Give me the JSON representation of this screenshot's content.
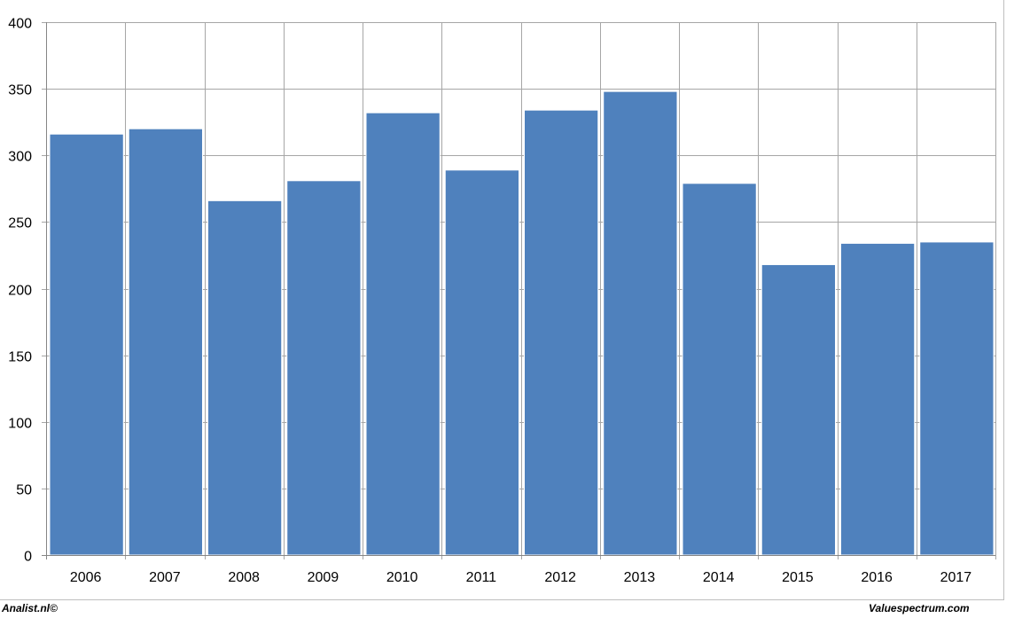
{
  "chart_data": {
    "type": "bar",
    "categories": [
      "2006",
      "2007",
      "2008",
      "2009",
      "2010",
      "2011",
      "2012",
      "2013",
      "2014",
      "2015",
      "2016",
      "2017"
    ],
    "values": [
      316,
      320,
      266,
      281,
      332,
      289,
      334,
      348,
      279,
      218,
      234,
      235
    ],
    "title": "",
    "xlabel": "",
    "ylabel": "",
    "ylim": [
      0,
      400
    ],
    "yticks": [
      "0",
      "50",
      "100",
      "150",
      "200",
      "250",
      "300",
      "350",
      "400"
    ],
    "grid": true,
    "legend": "none",
    "bar_color": "#4f81bd",
    "grid_color": "#a6a6a6"
  },
  "footer": {
    "left_text": "Analist.nl©",
    "right_text": "Valuespectrum.com"
  }
}
